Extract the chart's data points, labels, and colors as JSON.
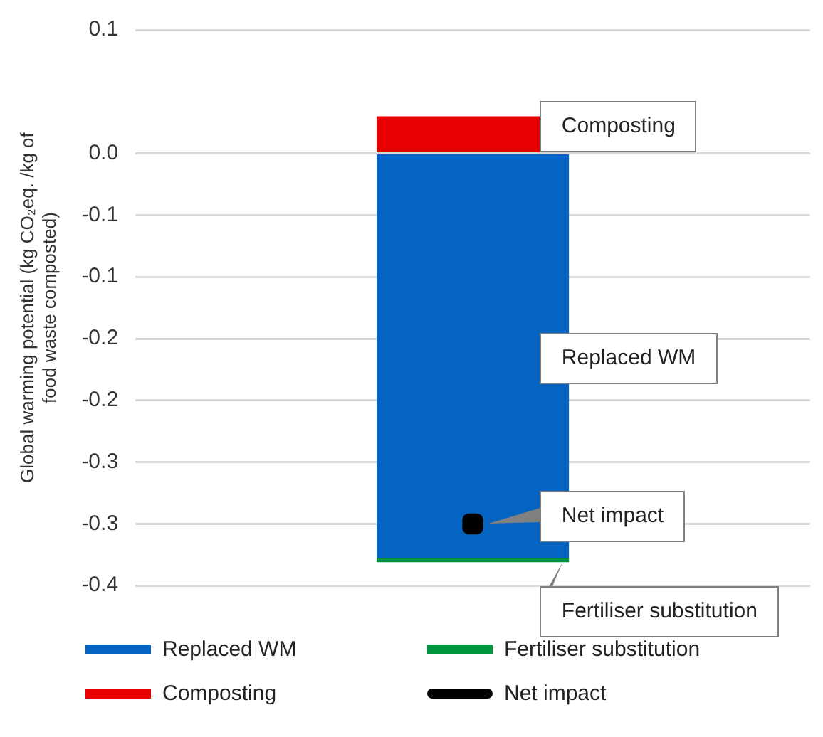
{
  "chart_data": {
    "type": "bar",
    "stacked": true,
    "ylabel": "Global warming potential (kg CO₂eq. /kg of food waste composted)",
    "categories": [
      null
    ],
    "ylim": [
      -0.35,
      0.1
    ],
    "yticks": [
      0.1,
      {
        "value": 0,
        "label": "0.0"
      },
      {
        "value": -0.05,
        "label": "-0.1"
      },
      -0.1,
      {
        "value": -0.15,
        "label": "-0.2"
      },
      -0.2,
      {
        "value": -0.25,
        "label": "-0.3"
      },
      -0.3,
      {
        "value": -0.35,
        "label": "-0.4"
      }
    ],
    "grid": "y",
    "legend": "bottom",
    "marker": "square",
    "series": [
      {
        "name": "Replaced WM",
        "color": "#0563c1",
        "values": [
          -0.328
        ]
      },
      {
        "name": "Fertiliser substitution",
        "color": "#00963f",
        "values": [
          -0.003
        ]
      },
      {
        "name": "Composting",
        "color": "#e60000",
        "values": [
          0.03
        ]
      },
      {
        "name": "Net impact",
        "type": "scatter",
        "color": "#000000",
        "values": [
          -0.3
        ]
      }
    ]
  }
}
